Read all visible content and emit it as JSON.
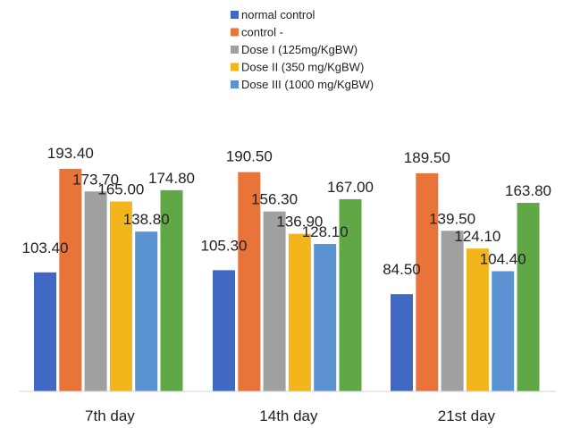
{
  "chart_data": {
    "type": "bar",
    "title": "",
    "xlabel": "",
    "ylabel": "",
    "categories": [
      "7th day",
      "14th day",
      "21st day"
    ],
    "ylim": [
      0,
      210
    ],
    "grid": false,
    "legend_position": "top",
    "series": [
      {
        "name": "normal control",
        "color": "#4169c4",
        "values": [
          103.4,
          105.3,
          84.5
        ]
      },
      {
        "name": "control -",
        "color": "#e9743a",
        "values": [
          193.4,
          190.5,
          189.5
        ]
      },
      {
        "name": "Dose I (125mg/KgBW)",
        "color": "#a0a0a0",
        "values": [
          173.7,
          156.3,
          139.5
        ]
      },
      {
        "name": "Dose II (350 mg/KgBW)",
        "color": "#f2b51c",
        "values": [
          165.0,
          136.9,
          124.1
        ]
      },
      {
        "name": "Dose III (1000 mg/KgBW)",
        "color": "#5b93d2",
        "values": [
          138.8,
          128.1,
          104.4
        ]
      },
      {
        "color": "#5fa845",
        "values": [
          174.8,
          167.0,
          163.8
        ]
      }
    ],
    "value_labels": [
      [
        "103.40",
        "193.40",
        "173.70",
        "165.00",
        "138.80",
        "174.80"
      ],
      [
        "105.30",
        "190.50",
        "156.30",
        "136.90",
        "128.10",
        "167.00"
      ],
      [
        "84.50",
        "189.50",
        "139.50",
        "124.10",
        "104.40",
        "163.80"
      ]
    ]
  }
}
